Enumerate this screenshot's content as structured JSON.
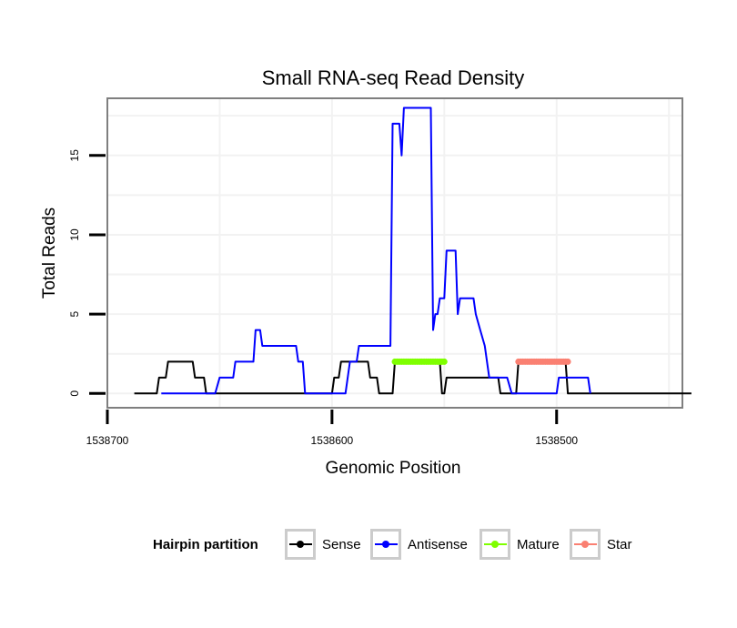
{
  "chart_data": {
    "type": "line",
    "title": "Small RNA-seq Read Density",
    "xlabel": "Genomic Position",
    "ylabel": "Total Reads",
    "xlim": [
      1538700,
      1538444
    ],
    "ylim": [
      -0.9,
      18.6
    ],
    "x_ticks": [
      1538700,
      1538600,
      1538500
    ],
    "x_tick_labels": [
      "1538700",
      "1538600",
      "1538500"
    ],
    "y_ticks": [
      0,
      5,
      10,
      15
    ],
    "y_tick_labels": [
      "0",
      "5",
      "10",
      "15"
    ],
    "grid": true,
    "legend": {
      "title": "Hairpin partition",
      "position": "bottom",
      "entries": [
        {
          "label": "Sense",
          "color": "#000000"
        },
        {
          "label": "Antisense",
          "color": "#0000ff"
        },
        {
          "label": "Mature",
          "color": "#7fff00"
        },
        {
          "label": "Star",
          "color": "#fa8072"
        }
      ]
    },
    "series": [
      {
        "name": "Sense",
        "color": "#000000",
        "points": [
          [
            1538688,
            0
          ],
          [
            1538678,
            0
          ],
          [
            1538677,
            1
          ],
          [
            1538674,
            1
          ],
          [
            1538673,
            2
          ],
          [
            1538662,
            2
          ],
          [
            1538661,
            1
          ],
          [
            1538657,
            1
          ],
          [
            1538656,
            0
          ],
          [
            1538600,
            0
          ],
          [
            1538599,
            1
          ],
          [
            1538597,
            1
          ],
          [
            1538596,
            2
          ],
          [
            1538584,
            2
          ],
          [
            1538583,
            1
          ],
          [
            1538580,
            1
          ],
          [
            1538579,
            0
          ],
          [
            1538573,
            0
          ],
          [
            1538572,
            2
          ],
          [
            1538552,
            2
          ],
          [
            1538551,
            0
          ],
          [
            1538550,
            0
          ],
          [
            1538549,
            1
          ],
          [
            1538526,
            1
          ],
          [
            1538525,
            0
          ],
          [
            1538518,
            0
          ],
          [
            1538517,
            2
          ],
          [
            1538496,
            2
          ],
          [
            1538495,
            0
          ],
          [
            1538480,
            0
          ],
          [
            1538440,
            0
          ]
        ]
      },
      {
        "name": "Antisense",
        "color": "#0000ff",
        "points": [
          [
            1538676,
            0
          ],
          [
            1538652,
            0
          ],
          [
            1538650,
            1
          ],
          [
            1538644,
            1
          ],
          [
            1538643,
            2
          ],
          [
            1538635,
            2
          ],
          [
            1538634,
            4
          ],
          [
            1538632,
            4
          ],
          [
            1538631,
            3
          ],
          [
            1538616,
            3
          ],
          [
            1538615,
            2
          ],
          [
            1538613,
            2
          ],
          [
            1538612,
            0
          ],
          [
            1538594,
            0
          ],
          [
            1538592,
            2
          ],
          [
            1538589,
            2
          ],
          [
            1538588,
            3
          ],
          [
            1538574,
            3
          ],
          [
            1538573,
            17
          ],
          [
            1538570,
            17
          ],
          [
            1538569,
            15
          ],
          [
            1538568,
            18
          ],
          [
            1538556,
            18
          ],
          [
            1538555,
            4
          ],
          [
            1538554,
            5
          ],
          [
            1538553,
            5
          ],
          [
            1538552,
            6
          ],
          [
            1538550,
            6
          ],
          [
            1538549,
            9
          ],
          [
            1538545,
            9
          ],
          [
            1538544,
            5
          ],
          [
            1538543,
            6
          ],
          [
            1538537,
            6
          ],
          [
            1538536,
            5
          ],
          [
            1538534,
            4
          ],
          [
            1538532,
            3
          ],
          [
            1538530,
            1
          ],
          [
            1538522,
            1
          ],
          [
            1538520,
            0
          ],
          [
            1538500,
            0
          ],
          [
            1538499,
            1
          ],
          [
            1538486,
            1
          ],
          [
            1538485,
            0
          ]
        ]
      },
      {
        "name": "Mature",
        "color": "#7fff00",
        "segment": [
          1538572,
          1538550
        ],
        "value": 2
      },
      {
        "name": "Star",
        "color": "#fa8072",
        "segment": [
          1538517,
          1538495
        ],
        "value": 2
      }
    ]
  }
}
